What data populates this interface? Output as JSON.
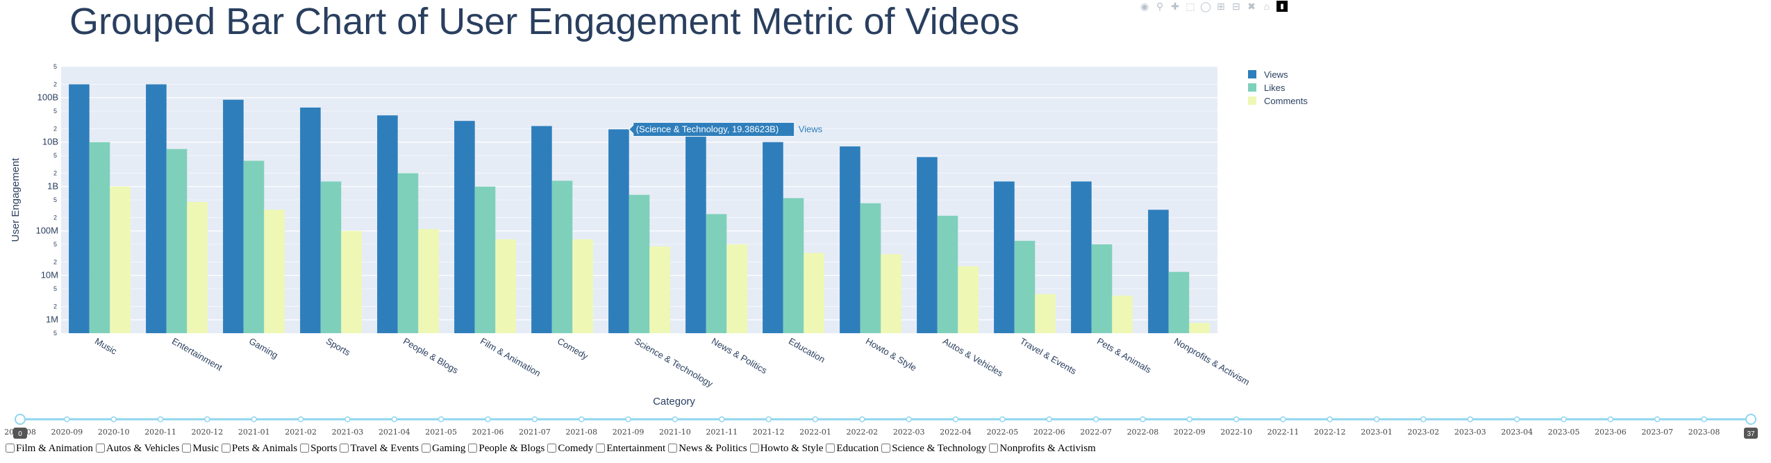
{
  "page": {
    "title": "Grouped Bar Chart of User Engagement Metric of Videos"
  },
  "modebar": {
    "icons": [
      "camera-icon",
      "zoom-icon",
      "pan-icon",
      "box-select-icon",
      "lasso-icon",
      "zoom-in-icon",
      "zoom-out-icon",
      "autoscale-icon",
      "reset-axes-icon",
      "plotly-logo-icon"
    ]
  },
  "colors": {
    "views": "#2e7ebb",
    "likes": "#7fd0bb",
    "comments": "#eef8b4",
    "plot_bg": "#e5ecf6",
    "text": "#2a3f5f",
    "slider": "#8fd6ef"
  },
  "chart_data": {
    "type": "bar",
    "title": "Grouped Bar Chart of User Engagement Metric of Videos",
    "xlabel": "Category",
    "ylabel": "User Engagement",
    "yscale": "log",
    "legend_position": "top-right",
    "grid": true,
    "categories": [
      "Music",
      "Entertainment",
      "Gaming",
      "Sports",
      "People & Blogs",
      "Film & Animation",
      "Comedy",
      "Science & Technology",
      "News & Politics",
      "Education",
      "Howto & Style",
      "Autos & Vehicles",
      "Travel & Events",
      "Pets & Animals",
      "Nonprofits & Activism"
    ],
    "series": [
      {
        "name": "Views",
        "values": [
          200000000000,
          200000000000,
          90000000000,
          60000000000,
          40000000000,
          30000000000,
          23000000000,
          19386230000,
          14000000000,
          10000000000,
          8000000000,
          4600000000,
          1300000000,
          1300000000,
          300000000
        ]
      },
      {
        "name": "Likes",
        "values": [
          10000000000,
          7000000000,
          3800000000,
          1300000000,
          2000000000,
          1000000000,
          1350000000,
          650000000,
          240000000,
          550000000,
          420000000,
          220000000,
          60000000,
          50000000,
          12000000
        ]
      },
      {
        "name": "Comments",
        "values": [
          1000000000,
          450000000,
          300000000,
          100000000,
          110000000,
          65000000,
          65000000,
          45000000,
          50000000,
          32000000,
          30000000,
          16000000,
          3800000,
          3500000,
          850000
        ]
      }
    ],
    "y_ticks_major": [
      "1M",
      "10M",
      "100M",
      "1B",
      "10B",
      "100B"
    ],
    "y_ticks_minor": [
      "2",
      "5"
    ],
    "hover": {
      "label": "(Science & Technology, 19.38623B)",
      "series_name": "Views"
    }
  },
  "slider": {
    "labels": [
      "2020-08",
      "2020-09",
      "2020-10",
      "2020-11",
      "2020-12",
      "2021-01",
      "2021-02",
      "2021-03",
      "2021-04",
      "2021-05",
      "2021-06",
      "2021-07",
      "2021-08",
      "2021-09",
      "2021-10",
      "2021-11",
      "2021-12",
      "2022-01",
      "2022-02",
      "2022-03",
      "2022-04",
      "2022-05",
      "2022-06",
      "2022-07",
      "2022-08",
      "2022-09",
      "2022-10",
      "2022-11",
      "2022-12",
      "2023-01",
      "2023-02",
      "2023-03",
      "2023-04",
      "2023-05",
      "2023-06",
      "2023-07",
      "2023-08"
    ],
    "left_value": "0",
    "right_value": "37"
  },
  "filters": {
    "options": [
      "Film & Animation",
      "Autos & Vehicles",
      "Music",
      "Pets & Animals",
      "Sports",
      "Travel & Events",
      "Gaming",
      "People & Blogs",
      "Comedy",
      "Entertainment",
      "News & Politics",
      "Howto & Style",
      "Education",
      "Science & Technology",
      "Nonprofits & Activism"
    ]
  }
}
